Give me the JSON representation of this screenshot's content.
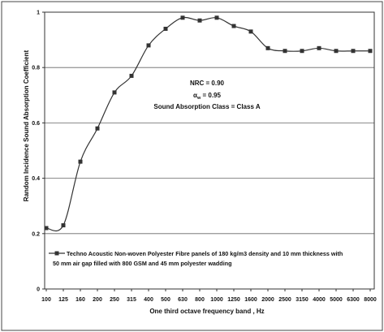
{
  "chart_data": {
    "type": "line",
    "title": "",
    "xlabel": "One third octave frequency band , Hz",
    "ylabel": "Random Incidence Sound Absorption Coefficient",
    "categories": [
      "100",
      "125",
      "160",
      "200",
      "250",
      "315",
      "400",
      "500",
      "630",
      "800",
      "1000",
      "1250",
      "1600",
      "2000",
      "2500",
      "3150",
      "4000",
      "5000",
      "6300",
      "8000"
    ],
    "series": [
      {
        "name": "Techno Acoustic Non-woven Polyester Fibre panels of 180 kg/m3 density and 10 mm thickness with 50 mm air gap filled with 800 GSM and 45 mm polyester wadding",
        "values": [
          0.22,
          0.23,
          0.46,
          0.58,
          0.71,
          0.77,
          0.88,
          0.94,
          0.98,
          0.97,
          0.98,
          0.95,
          0.93,
          0.87,
          0.86,
          0.86,
          0.87,
          0.86,
          0.86,
          0.86
        ],
        "color": "#333333",
        "marker": "square"
      }
    ],
    "ylim": [
      0,
      1
    ],
    "yticks": [
      "0",
      "0.2",
      "0.4",
      "0.6",
      "0.8",
      "1"
    ],
    "grid": true,
    "legend_position": "bottom",
    "legend_lines": [
      "Techno Acoustic Non-woven Polyester Fibre panels of 180 kg/m3 density and 10 mm thickness with",
      "50 mm air gap filled with 800 GSM and 45 mm polyester wadding"
    ],
    "annotation": {
      "nrc": "NRC = 0.90",
      "alpha_symbol": "α",
      "alpha_sub": "w",
      "alpha_value": " = 0.95",
      "class": "Sound Absorption  Class = Class A"
    }
  }
}
